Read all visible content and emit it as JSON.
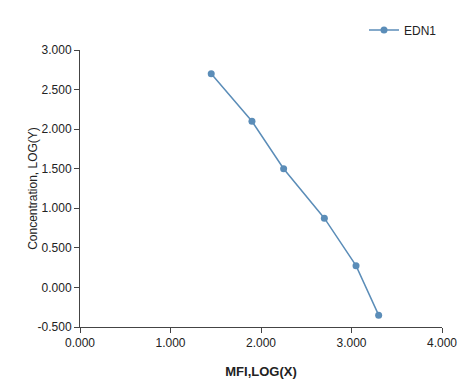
{
  "chart_data": {
    "type": "line",
    "x": [
      1.45,
      1.9,
      2.25,
      2.7,
      3.05,
      3.3
    ],
    "series": [
      {
        "name": "EDN1",
        "color": "#5b8db8",
        "marker": "circle",
        "line_style": "solid",
        "values": [
          2.7,
          2.1,
          1.5,
          0.875,
          0.275,
          -0.35
        ]
      }
    ],
    "xlabel": "MFI,LOG(X)",
    "ylabel": "Concentration, LOG(Y)",
    "xlim": [
      0.0,
      4.0
    ],
    "ylim": [
      -0.5,
      3.0
    ],
    "xticks": [
      {
        "value": 0.0,
        "label": "0.000"
      },
      {
        "value": 1.0,
        "label": "1.000"
      },
      {
        "value": 2.0,
        "label": "2.000"
      },
      {
        "value": 3.0,
        "label": "3.000"
      },
      {
        "value": 4.0,
        "label": "4.000"
      }
    ],
    "yticks": [
      {
        "value": -0.5,
        "label": "-0.500"
      },
      {
        "value": 0.0,
        "label": "0.000"
      },
      {
        "value": 0.5,
        "label": "0.500"
      },
      {
        "value": 1.0,
        "label": "1.000"
      },
      {
        "value": 1.5,
        "label": "1.500"
      },
      {
        "value": 2.0,
        "label": "2.000"
      },
      {
        "value": 2.5,
        "label": "2.500"
      },
      {
        "value": 3.0,
        "label": "3.000"
      }
    ],
    "grid": false,
    "legend": "upper right"
  }
}
